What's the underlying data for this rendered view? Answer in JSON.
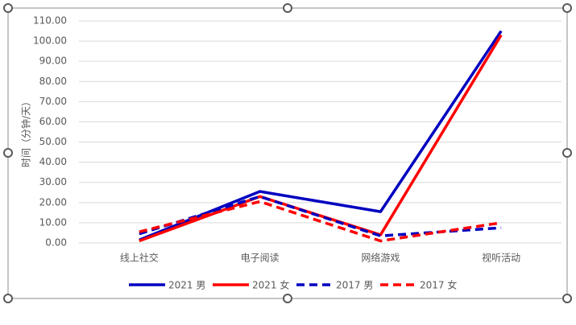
{
  "chart_data": {
    "type": "line",
    "y_axis_label": "时间（分钟/天）",
    "categories": [
      "线上社交",
      "电子阅读",
      "网络游戏",
      "视听活动"
    ],
    "series": [
      {
        "name": "2021 男",
        "color": "#0000c0",
        "dashed": false,
        "values": [
          1.5,
          25.5,
          15.5,
          105
        ]
      },
      {
        "name": "2021 女",
        "color": "#ff0000",
        "dashed": false,
        "values": [
          1,
          23,
          4,
          103
        ]
      },
      {
        "name": "2017 男",
        "color": "#0000c0",
        "dashed": true,
        "values": [
          4.5,
          23,
          3.5,
          7.5
        ]
      },
      {
        "name": "2017 女",
        "color": "#ff0000",
        "dashed": true,
        "values": [
          5.5,
          20.5,
          1,
          10
        ]
      }
    ],
    "ylim": [
      0,
      110
    ],
    "yticks": [
      {
        "value": 0,
        "label": "0.00"
      },
      {
        "value": 10,
        "label": "10.00"
      },
      {
        "value": 20,
        "label": "20.00"
      },
      {
        "value": 30,
        "label": "30.00"
      },
      {
        "value": 40,
        "label": "40.00"
      },
      {
        "value": 50,
        "label": "50.00"
      },
      {
        "value": 60,
        "label": "60.00"
      },
      {
        "value": 70,
        "label": "70.00"
      },
      {
        "value": 80,
        "label": "80.00"
      },
      {
        "value": 90,
        "label": "90.00"
      },
      {
        "value": 100,
        "label": "100.00"
      },
      {
        "value": 110,
        "label": "110.00"
      }
    ],
    "grid": true,
    "legend": "bottom"
  }
}
